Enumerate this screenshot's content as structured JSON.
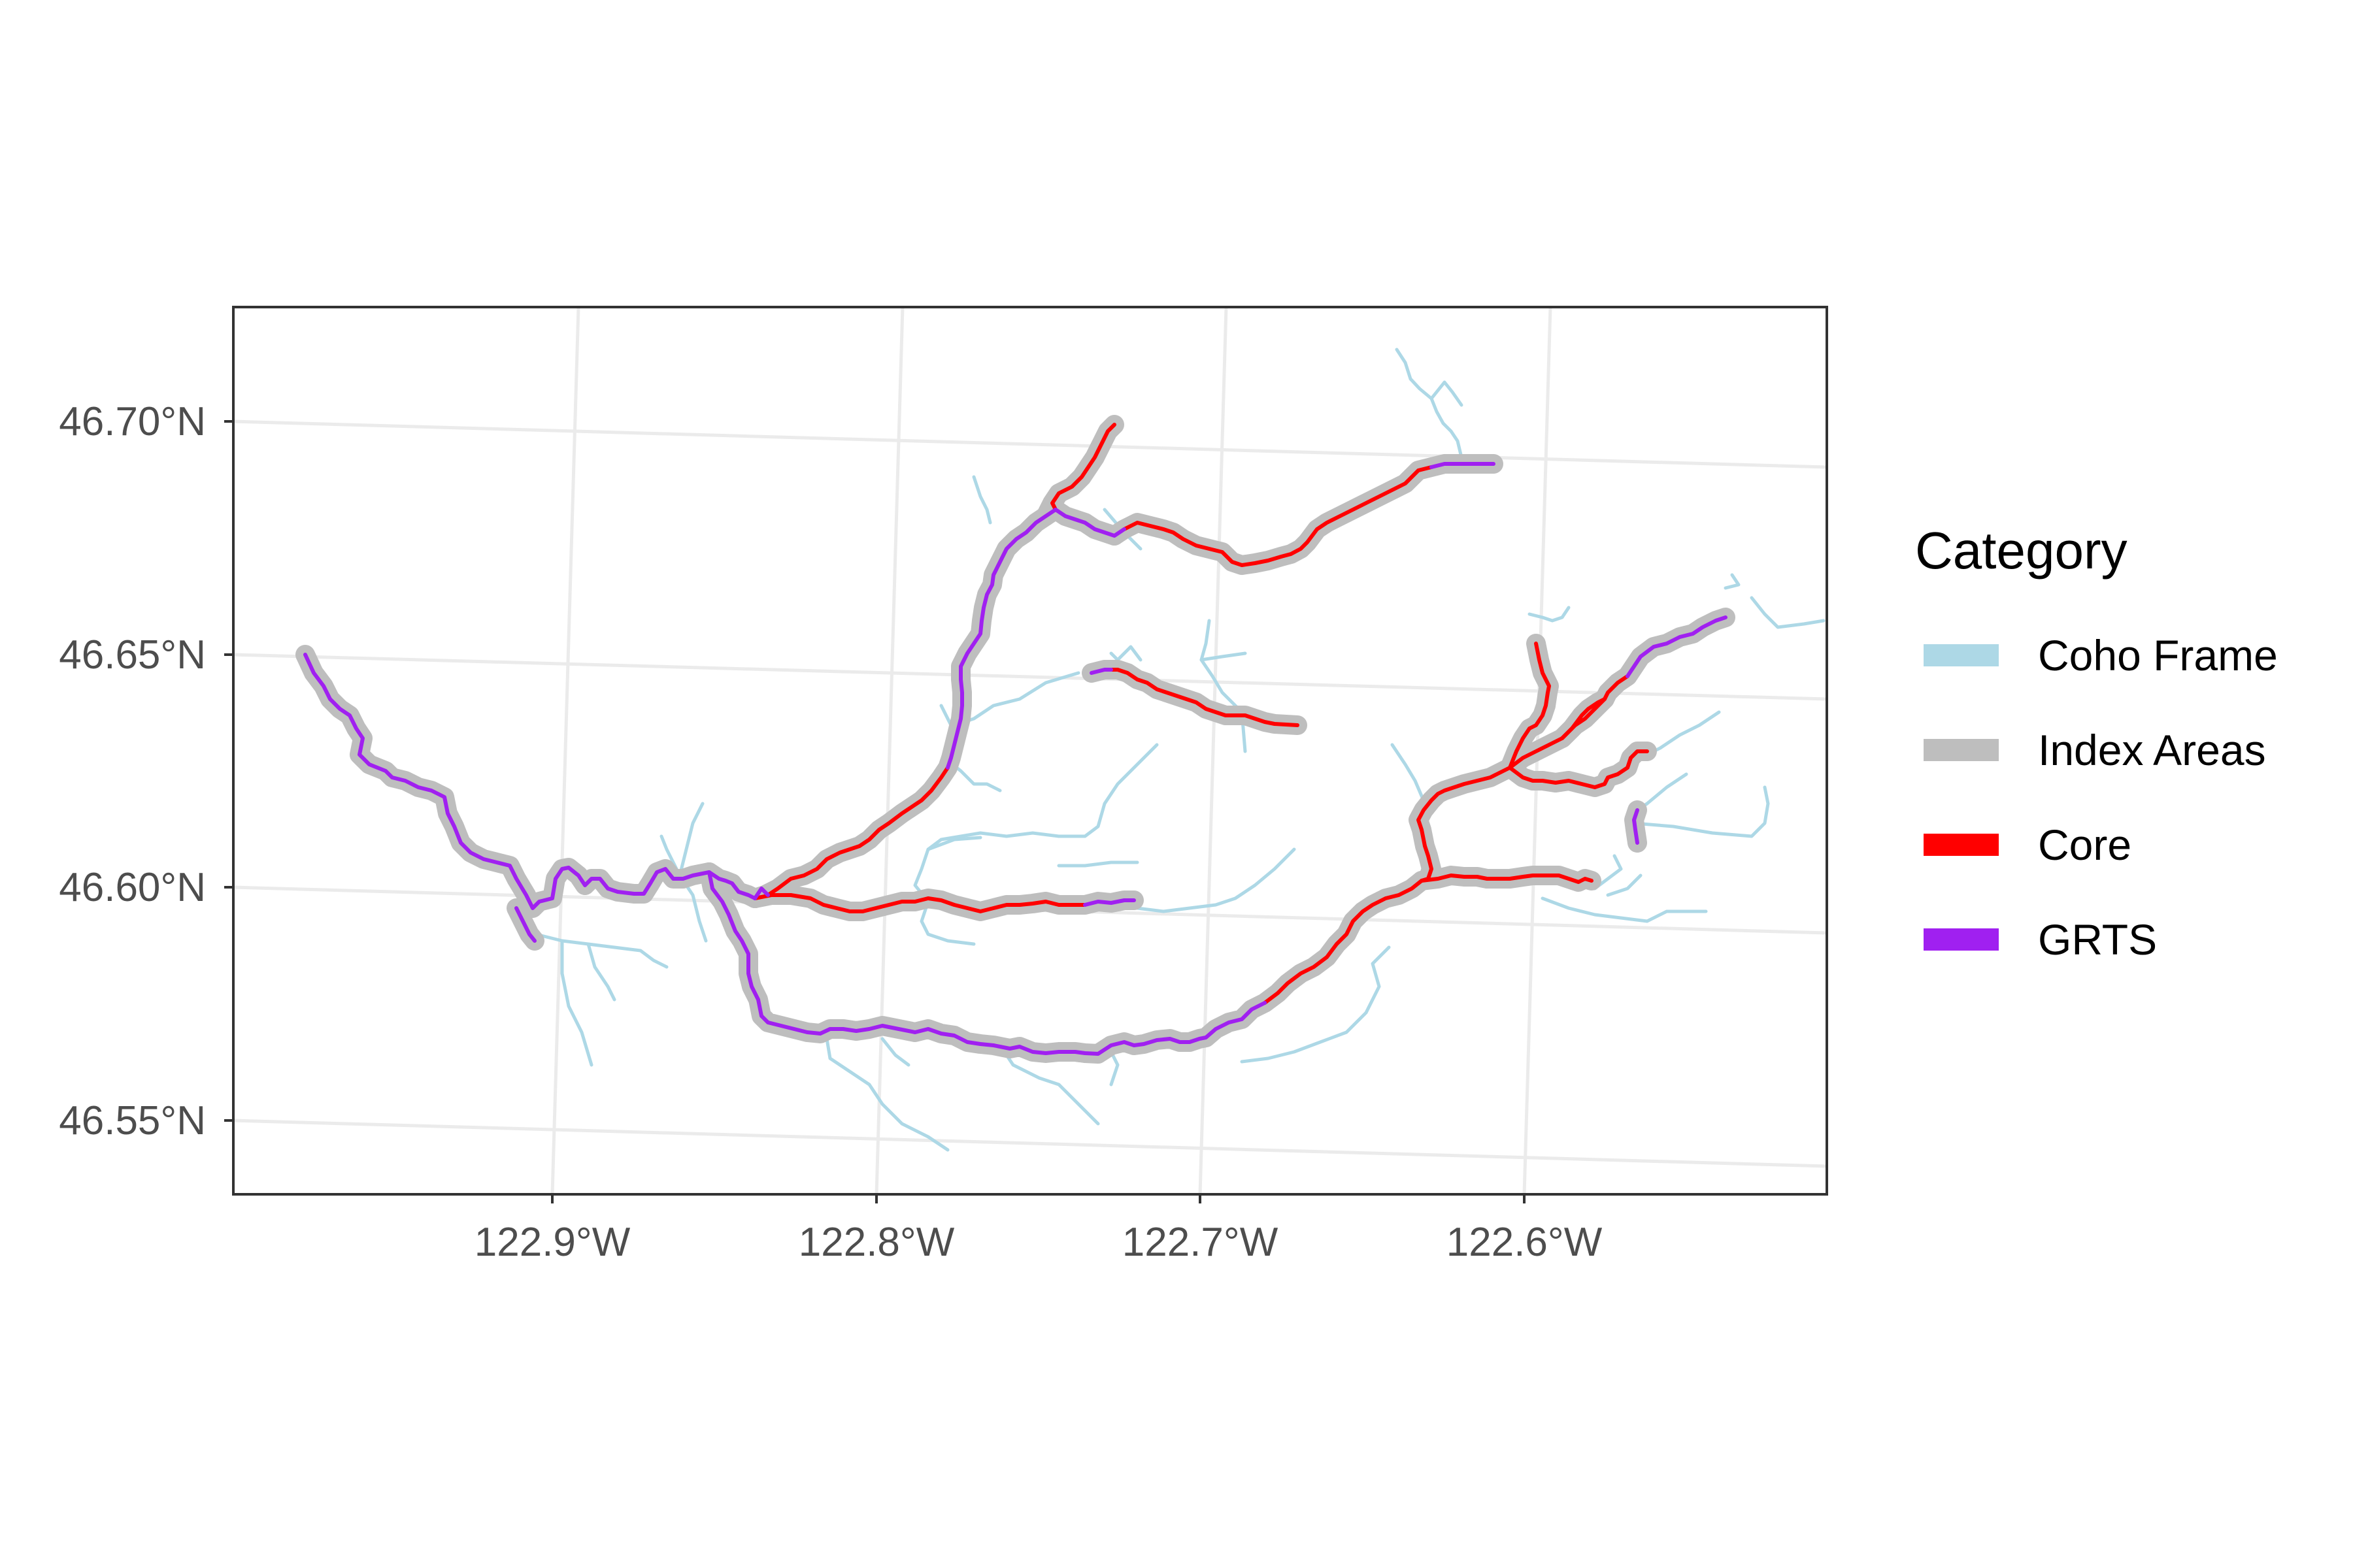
{
  "map": {
    "x_axis": {
      "ticks": [
        "122.9°W",
        "122.8°W",
        "122.7°W",
        "122.6°W"
      ]
    },
    "y_axis": {
      "ticks": [
        "46.70°N",
        "46.65°N",
        "46.60°N",
        "46.55°N"
      ]
    },
    "legend": {
      "title": "Category",
      "placement": "right",
      "items": [
        {
          "label": "Coho Frame",
          "color": "#add8e6"
        },
        {
          "label": "Index Areas",
          "color": "#bebebe"
        },
        {
          "label": "Core",
          "color": "#ff0000"
        },
        {
          "label": "GRTS",
          "color": "#a020f0"
        }
      ]
    },
    "grid": true
  }
}
